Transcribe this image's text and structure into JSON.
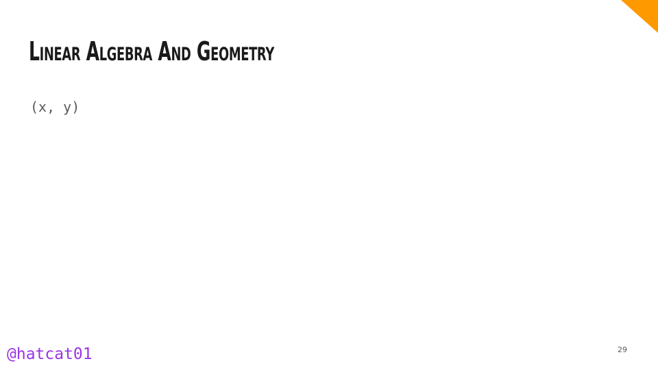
{
  "slide": {
    "title": "Linear Algebra And Geometry",
    "body_text": "(x, y)",
    "handle": "@hatcat01",
    "page_number": "29"
  },
  "colors": {
    "accent": "#ff9900",
    "title_text": "#1a1a1a",
    "body_text": "#595959",
    "handle_text": "#9b34e6"
  }
}
